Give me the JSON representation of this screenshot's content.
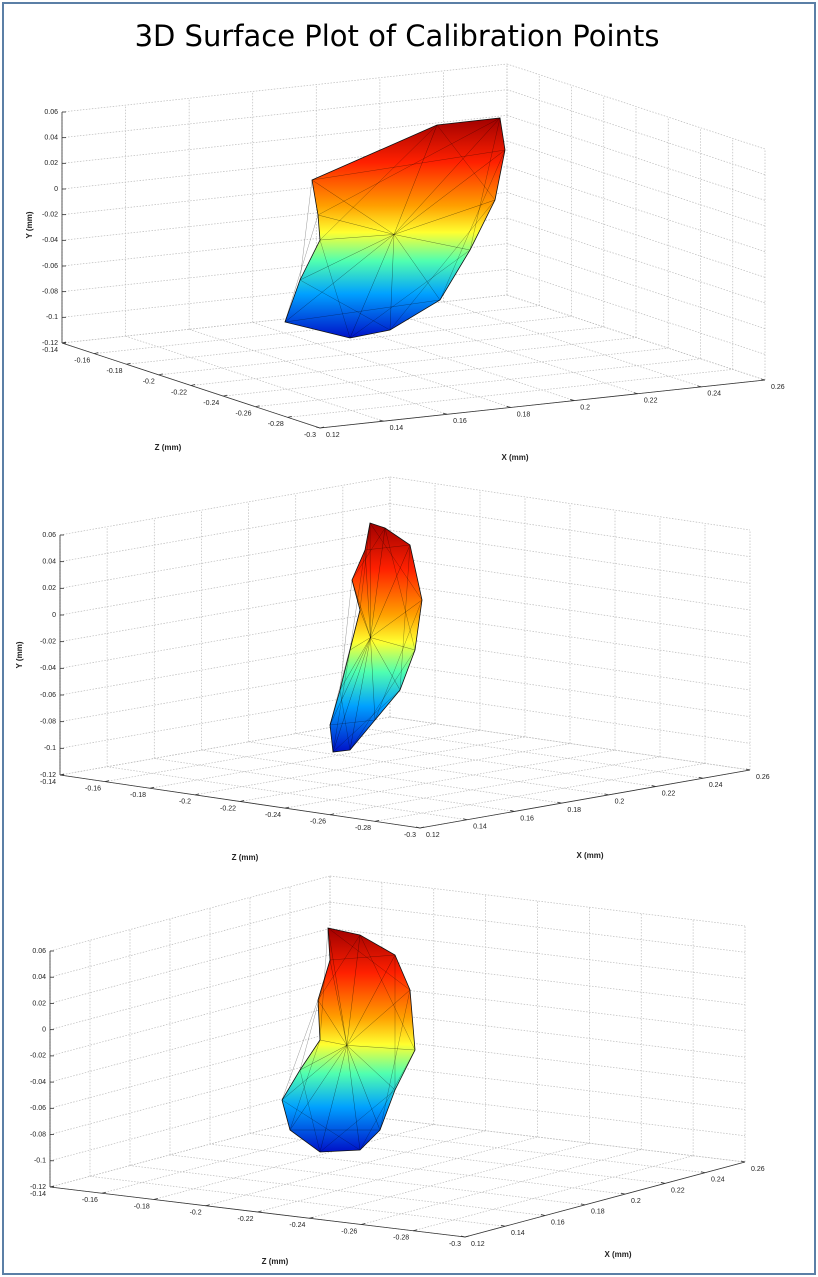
{
  "title": "3D Surface Plot of Calibration Points",
  "chart_data": [
    {
      "type": "surface3d",
      "xlabel": "X (mm)",
      "ylabel": "Y (mm)",
      "zlabel": "Z (mm)",
      "xlim": [
        0.12,
        0.26
      ],
      "xticks": [
        0.12,
        0.14,
        0.16,
        0.18,
        0.2,
        0.22,
        0.24,
        0.26
      ],
      "ylim": [
        -0.12,
        0.06
      ],
      "yticks": [
        -0.12,
        -0.1,
        -0.08,
        -0.06,
        -0.04,
        -0.02,
        0,
        0.02,
        0.04,
        0.06
      ],
      "zlim": [
        -0.3,
        -0.14
      ],
      "zticks": [
        -0.3,
        -0.28,
        -0.26,
        -0.24,
        -0.22,
        -0.2,
        -0.18,
        -0.16,
        -0.14
      ],
      "grid": true
    },
    {
      "type": "surface3d",
      "xlabel": "X (mm)",
      "ylabel": "Y (mm)",
      "zlabel": "Z (mm)",
      "xlim": [
        0.12,
        0.26
      ],
      "xticks": [
        0.12,
        0.14,
        0.16,
        0.18,
        0.2,
        0.22,
        0.24,
        0.26
      ],
      "ylim": [
        -0.12,
        0.06
      ],
      "yticks": [
        -0.12,
        -0.1,
        -0.08,
        -0.06,
        -0.04,
        -0.02,
        0,
        0.02,
        0.04,
        0.06
      ],
      "zlim": [
        -0.3,
        -0.14
      ],
      "zticks": [
        -0.3,
        -0.28,
        -0.26,
        -0.24,
        -0.22,
        -0.2,
        -0.18,
        -0.16,
        -0.14
      ],
      "grid": true
    },
    {
      "type": "surface3d",
      "xlabel": "X (mm)",
      "zlabel": "Z (mm)",
      "xlim": [
        0.12,
        0.26
      ],
      "xticks": [
        0.12,
        0.14,
        0.16,
        0.18,
        0.2,
        0.22,
        0.24,
        0.26
      ],
      "ylim": [
        -0.12,
        0.06
      ],
      "yticks": [
        -0.12,
        -0.1,
        -0.08,
        -0.06,
        -0.04,
        -0.02,
        0,
        0.02,
        0.04,
        0.06
      ],
      "zlim": [
        -0.3,
        -0.14
      ],
      "zticks": [
        -0.3,
        -0.28,
        -0.26,
        -0.24,
        -0.22,
        -0.2,
        -0.18,
        -0.16,
        -0.14
      ],
      "grid": true
    }
  ]
}
